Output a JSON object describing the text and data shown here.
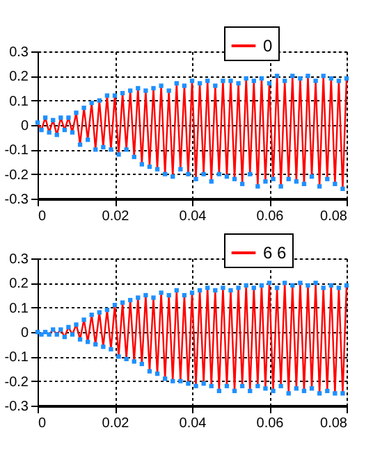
{
  "chart_data": [
    {
      "type": "line",
      "xlim": [
        0,
        0.08
      ],
      "xticks": [
        0,
        0.02,
        0.04,
        0.06,
        0.08
      ],
      "ylim": [
        -0.3,
        0.3
      ],
      "yticks": [
        -0.3,
        -0.2,
        -0.1,
        0,
        0.1,
        0.2,
        0.3
      ],
      "grid": true,
      "legend": "top right",
      "marker": "square",
      "line_style": "solid",
      "x": [
        0,
        0.001,
        0.002,
        0.003,
        0.004,
        0.005,
        0.006,
        0.007,
        0.008,
        0.009,
        0.01,
        0.011,
        0.012,
        0.013,
        0.014,
        0.015,
        0.016,
        0.017,
        0.018,
        0.019,
        0.02,
        0.021,
        0.022,
        0.023,
        0.024,
        0.025,
        0.026,
        0.027,
        0.028,
        0.029,
        0.03,
        0.031,
        0.032,
        0.033,
        0.034,
        0.035,
        0.036,
        0.037,
        0.038,
        0.039,
        0.04,
        0.041,
        0.042,
        0.043,
        0.044,
        0.045,
        0.046,
        0.047,
        0.048,
        0.049,
        0.05,
        0.051,
        0.052,
        0.053,
        0.054,
        0.055,
        0.056,
        0.057,
        0.058,
        0.059,
        0.06,
        0.061,
        0.062,
        0.063,
        0.064,
        0.065,
        0.066,
        0.067,
        0.068,
        0.069,
        0.07,
        0.071,
        0.072,
        0.073,
        0.074,
        0.075,
        0.076,
        0.077,
        0.078,
        0.079,
        0.08
      ],
      "series": [
        {
          "name": "0",
          "color": "#ff0000",
          "values": [
            0.01,
            -0.02,
            0.03,
            -0.03,
            0.02,
            -0.04,
            0.03,
            -0.02,
            0.03,
            -0.03,
            0.05,
            -0.08,
            0.07,
            -0.06,
            0.09,
            -0.1,
            0.1,
            -0.09,
            0.12,
            -0.1,
            0.12,
            -0.12,
            0.13,
            -0.1,
            0.14,
            -0.13,
            0.15,
            -0.16,
            0.14,
            -0.17,
            0.15,
            -0.18,
            0.16,
            -0.2,
            0.14,
            -0.21,
            0.17,
            -0.18,
            0.16,
            -0.2,
            0.18,
            -0.22,
            0.17,
            -0.2,
            0.18,
            -0.23,
            0.16,
            -0.2,
            0.18,
            -0.21,
            0.18,
            -0.22,
            0.17,
            -0.24,
            0.19,
            -0.2,
            0.18,
            -0.25,
            0.19,
            -0.23,
            0.17,
            -0.22,
            0.2,
            -0.25,
            0.18,
            -0.22,
            0.2,
            -0.23,
            0.19,
            -0.24,
            0.2,
            -0.21,
            0.18,
            -0.25,
            0.2,
            -0.22,
            0.19,
            -0.24,
            0.18,
            -0.26,
            0.19
          ]
        }
      ]
    },
    {
      "type": "line",
      "xlim": [
        0,
        0.08
      ],
      "xticks": [
        0,
        0.02,
        0.04,
        0.06,
        0.08
      ],
      "ylim": [
        -0.3,
        0.3
      ],
      "yticks": [
        -0.3,
        -0.2,
        -0.1,
        0,
        0.1,
        0.2,
        0.3
      ],
      "grid": true,
      "legend": "top right",
      "marker": "square",
      "line_style": "solid",
      "x": [
        0,
        0.001,
        0.002,
        0.003,
        0.004,
        0.005,
        0.006,
        0.007,
        0.008,
        0.009,
        0.01,
        0.011,
        0.012,
        0.013,
        0.014,
        0.015,
        0.016,
        0.017,
        0.018,
        0.019,
        0.02,
        0.021,
        0.022,
        0.023,
        0.024,
        0.025,
        0.026,
        0.027,
        0.028,
        0.029,
        0.03,
        0.031,
        0.032,
        0.033,
        0.034,
        0.035,
        0.036,
        0.037,
        0.038,
        0.039,
        0.04,
        0.041,
        0.042,
        0.043,
        0.044,
        0.045,
        0.046,
        0.047,
        0.048,
        0.049,
        0.05,
        0.051,
        0.052,
        0.053,
        0.054,
        0.055,
        0.056,
        0.057,
        0.058,
        0.059,
        0.06,
        0.061,
        0.062,
        0.063,
        0.064,
        0.065,
        0.066,
        0.067,
        0.068,
        0.069,
        0.07,
        0.071,
        0.072,
        0.073,
        0.074,
        0.075,
        0.076,
        0.077,
        0.078,
        0.079,
        0.08
      ],
      "series": [
        {
          "name": "6 6",
          "color": "#ff0000",
          "values": [
            0,
            -0.01,
            0,
            -0.01,
            0.01,
            -0.01,
            0.01,
            -0.02,
            0.02,
            -0.01,
            0.03,
            -0.03,
            0.05,
            -0.04,
            0.07,
            -0.05,
            0.08,
            -0.06,
            0.09,
            -0.07,
            0.11,
            -0.1,
            0.12,
            -0.11,
            0.13,
            -0.12,
            0.14,
            -0.13,
            0.15,
            -0.16,
            0.14,
            -0.17,
            0.16,
            -0.19,
            0.15,
            -0.2,
            0.17,
            -0.2,
            0.15,
            -0.21,
            0.16,
            -0.22,
            0.17,
            -0.21,
            0.18,
            -0.22,
            0.17,
            -0.24,
            0.18,
            -0.22,
            0.17,
            -0.24,
            0.18,
            -0.22,
            0.19,
            -0.24,
            0.18,
            -0.22,
            0.19,
            -0.23,
            0.2,
            -0.24,
            0.18,
            -0.22,
            0.2,
            -0.25,
            0.19,
            -0.23,
            0.2,
            -0.24,
            0.19,
            -0.23,
            0.2,
            -0.25,
            0.18,
            -0.24,
            0.19,
            -0.25,
            0.18,
            -0.25,
            0.19
          ]
        }
      ]
    }
  ]
}
